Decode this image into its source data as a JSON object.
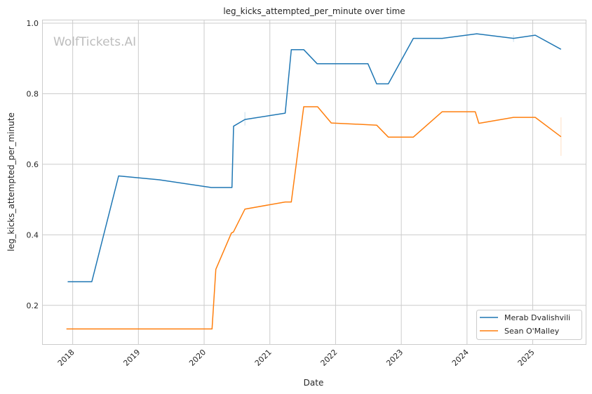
{
  "chart_data": {
    "type": "line",
    "title": "leg_kicks_attempted_per_minute over time",
    "xlabel": "Date",
    "ylabel": "leg_kicks_attempted_per_minute",
    "watermark": "WolfTickets.AI",
    "xlim": [
      "2017-07-15",
      "2025-10-22"
    ],
    "ylim": [
      0.09,
      1.01
    ],
    "x_ticks": [
      "2018",
      "2019",
      "2020",
      "2021",
      "2022",
      "2023",
      "2024",
      "2025"
    ],
    "y_ticks": [
      "0.2",
      "0.4",
      "0.6",
      "0.8",
      "1.0"
    ],
    "grid": true,
    "legend_position": "bottom-right",
    "series": [
      {
        "name": "Merab Dvalishvili",
        "color": "#1f77b4",
        "points": [
          [
            "2017-12-04",
            0.267
          ],
          [
            "2018-04-17",
            0.267
          ],
          [
            "2018-09-13",
            0.567
          ],
          [
            "2019-04-27",
            0.556
          ],
          [
            "2020-02-10",
            0.534
          ],
          [
            "2020-06-04",
            0.534
          ],
          [
            "2020-06-13",
            0.708
          ],
          [
            "2020-08-15",
            0.727
          ],
          [
            "2021-03-27",
            0.745
          ],
          [
            "2021-04-30",
            0.925
          ],
          [
            "2021-07-08",
            0.925
          ],
          [
            "2021-09-21",
            0.885
          ],
          [
            "2022-06-30",
            0.885
          ],
          [
            "2022-08-17",
            0.828
          ],
          [
            "2022-10-21",
            0.828
          ],
          [
            "2023-03-09",
            0.957
          ],
          [
            "2023-08-16",
            0.957
          ],
          [
            "2024-02-24",
            0.97
          ],
          [
            "2024-09-16",
            0.957
          ],
          [
            "2025-01-15",
            0.966
          ],
          [
            "2025-06-07",
            0.926
          ]
        ],
        "error_bars": [
          [
            "2020-08-15",
            0.71,
            0.748
          ],
          [
            "2024-09-16",
            0.947,
            0.967
          ]
        ]
      },
      {
        "name": "Sean O'Malley",
        "color": "#ff7f0e",
        "points": [
          [
            "2017-11-27",
            0.133
          ],
          [
            "2020-02-14",
            0.133
          ],
          [
            "2020-03-06",
            0.302
          ],
          [
            "2020-06-01",
            0.405
          ],
          [
            "2020-06-12",
            0.408
          ],
          [
            "2020-08-15",
            0.473
          ],
          [
            "2021-03-27",
            0.493
          ],
          [
            "2021-04-30",
            0.493
          ],
          [
            "2021-07-08",
            0.763
          ],
          [
            "2021-09-23",
            0.763
          ],
          [
            "2021-12-08",
            0.717
          ],
          [
            "2022-08-17",
            0.711
          ],
          [
            "2022-10-21",
            0.677
          ],
          [
            "2023-03-09",
            0.677
          ],
          [
            "2023-08-16",
            0.749
          ],
          [
            "2024-02-16",
            0.749
          ],
          [
            "2024-03-07",
            0.716
          ],
          [
            "2024-09-16",
            0.733
          ],
          [
            "2025-01-15",
            0.733
          ],
          [
            "2025-06-07",
            0.678
          ]
        ],
        "error_bars": [
          [
            "2025-06-07",
            0.624,
            0.733
          ]
        ]
      }
    ]
  }
}
